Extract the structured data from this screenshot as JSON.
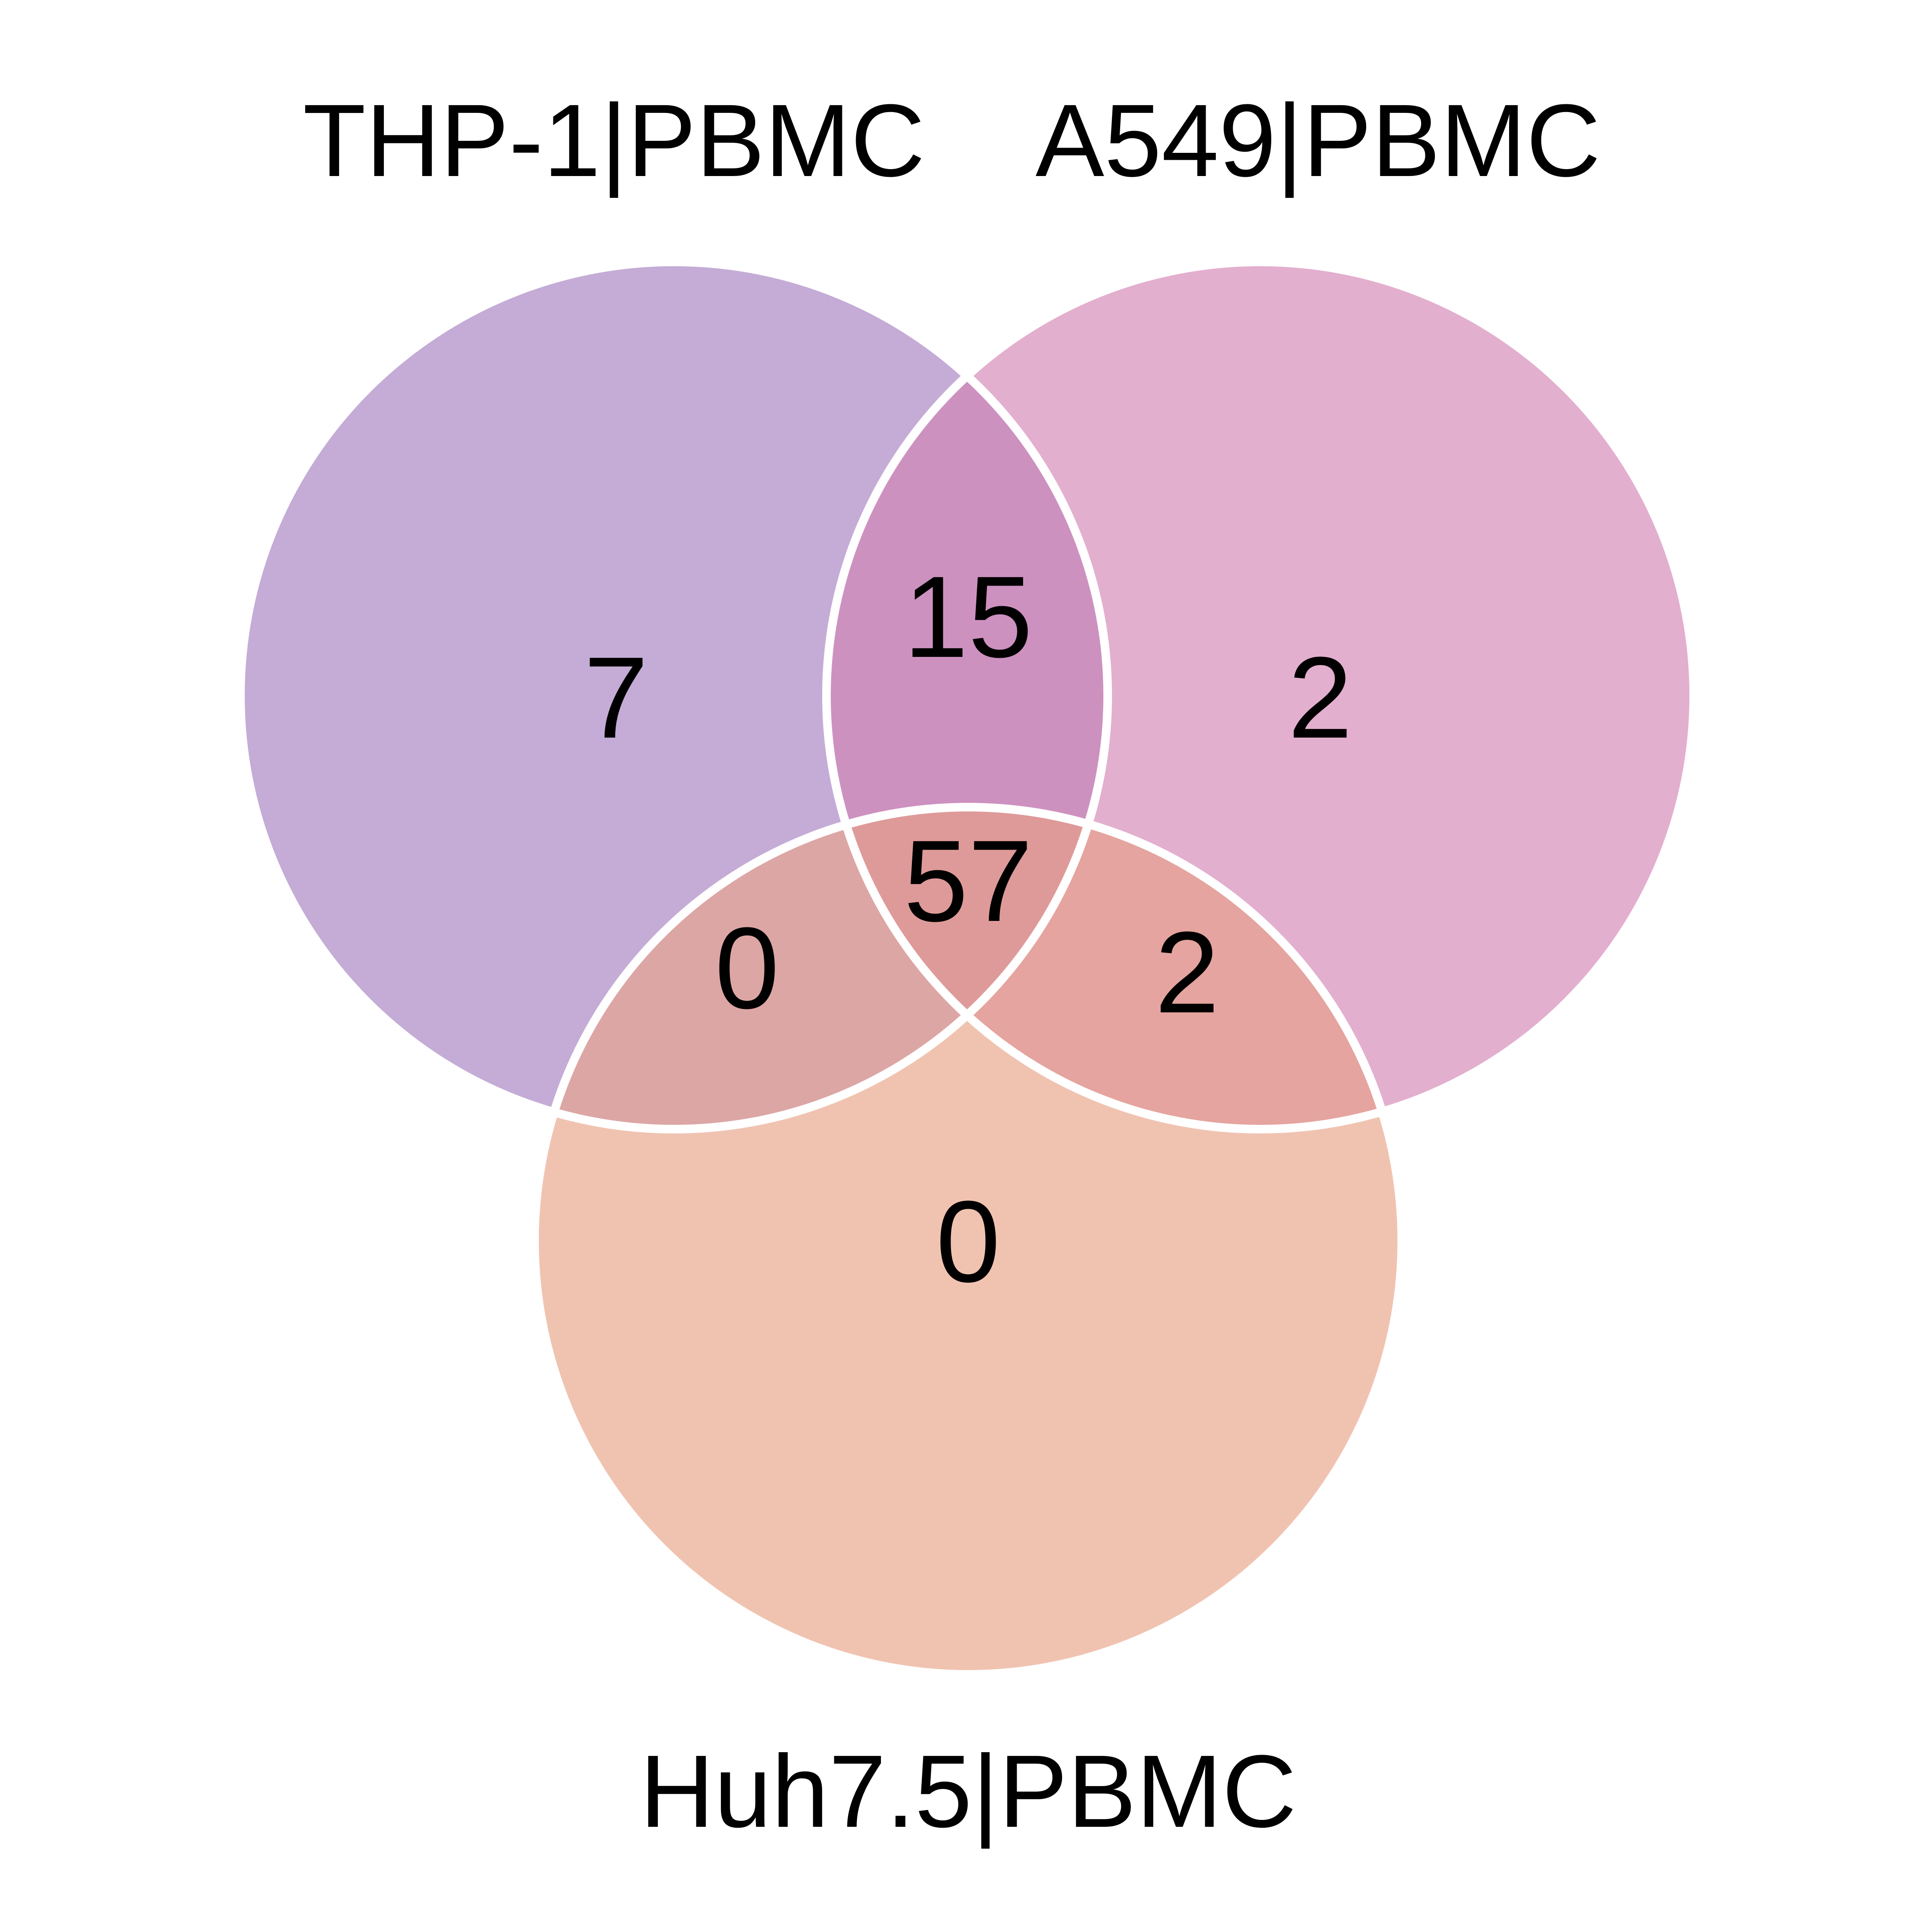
{
  "diagram": {
    "type": "venn-3",
    "sets": [
      {
        "id": "A",
        "label": "THP-1|PBMC",
        "color": "#C4ACD6"
      },
      {
        "id": "B",
        "label": "A549|PBMC",
        "color": "#E3AFCE"
      },
      {
        "id": "C",
        "label": "Huh7.5|PBMC",
        "color": "#F0C3B1"
      }
    ],
    "regions": {
      "only_A": {
        "value": "7",
        "color": "#C4ACD6"
      },
      "only_B": {
        "value": "2",
        "color": "#E3AFCE"
      },
      "only_C": {
        "value": "0",
        "color": "#F0C3B1"
      },
      "A_B": {
        "value": "15",
        "color": "#CD91C0"
      },
      "A_C": {
        "value": "0",
        "color": "#DCA6A5"
      },
      "B_C": {
        "value": "2",
        "color": "#E5A49F"
      },
      "A_B_C": {
        "value": "57",
        "color": "#DE9A99"
      }
    },
    "outline_color": "#FFFFFF"
  }
}
